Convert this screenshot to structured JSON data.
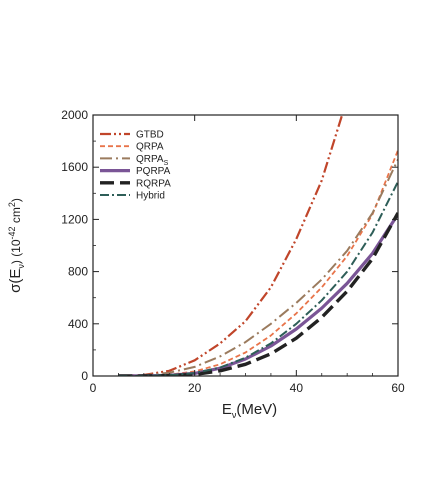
{
  "chart_data": {
    "type": "line",
    "xlabel": {
      "main": "E",
      "sub": "ν",
      "rest": "(MeV)"
    },
    "ylabel": {
      "main": "σ(E",
      "sub": "ν",
      "rest": ")  (10",
      "sup": "-42",
      "rest2": " cm",
      "sup2": "2",
      "end": ")"
    },
    "xlim": [
      0,
      60
    ],
    "ylim": [
      0,
      2000
    ],
    "xticks": [
      0,
      20,
      40,
      60
    ],
    "yticks": [
      0,
      400,
      800,
      1200,
      1600,
      2000
    ],
    "legend_position": "top-left",
    "series": [
      {
        "name": "GTBD",
        "color": "#c0452a",
        "dash": "11,3,2,3,2,3",
        "width": 2.2,
        "x": [
          5,
          10,
          15,
          20,
          25,
          30,
          35,
          40,
          45,
          49
        ],
        "y": [
          0,
          8,
          40,
          120,
          250,
          420,
          680,
          1050,
          1500,
          2000
        ]
      },
      {
        "name": "QRPA",
        "color": "#e8744a",
        "dash": "5,3",
        "width": 1.8,
        "x": [
          5,
          10,
          15,
          20,
          25,
          30,
          35,
          40,
          45,
          50,
          55,
          60
        ],
        "y": [
          0,
          2,
          10,
          35,
          90,
          180,
          310,
          480,
          680,
          920,
          1240,
          1730
        ]
      },
      {
        "name": "QRPA_S",
        "label_main": "QRPA",
        "label_sub": "S",
        "color": "#9b7b5e",
        "dash": "12,4,2,4",
        "width": 2.0,
        "x": [
          5,
          10,
          15,
          20,
          25,
          30,
          35,
          40,
          45,
          50,
          55,
          60
        ],
        "y": [
          0,
          5,
          25,
          70,
          150,
          260,
          400,
          560,
          740,
          960,
          1250,
          1660
        ]
      },
      {
        "name": "PQRPA",
        "color": "#7a5596",
        "dash": "",
        "width": 3.2,
        "x": [
          5,
          10,
          15,
          20,
          25,
          30,
          35,
          40,
          45,
          50,
          55,
          60
        ],
        "y": [
          0,
          1,
          5,
          20,
          60,
          130,
          230,
          360,
          520,
          710,
          940,
          1240
        ]
      },
      {
        "name": "RQRPA",
        "color": "#222222",
        "dash": "14,6",
        "width": 3.4,
        "x": [
          5,
          10,
          15,
          20,
          25,
          30,
          35,
          40,
          45,
          50,
          55,
          60
        ],
        "y": [
          0,
          0,
          3,
          12,
          40,
          90,
          170,
          290,
          450,
          650,
          900,
          1250
        ]
      },
      {
        "name": "Hybrid",
        "color": "#2e5e58",
        "dash": "9,3,2,3",
        "width": 2.0,
        "x": [
          5,
          10,
          15,
          20,
          25,
          30,
          35,
          40,
          45,
          50,
          55,
          60
        ],
        "y": [
          0,
          1,
          6,
          22,
          65,
          140,
          250,
          400,
          580,
          800,
          1100,
          1490
        ]
      }
    ]
  }
}
